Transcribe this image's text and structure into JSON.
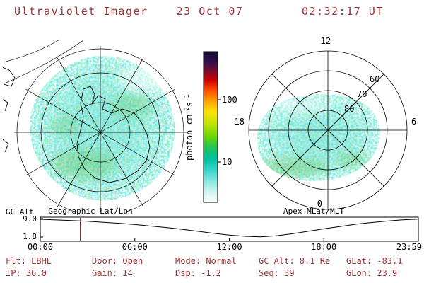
{
  "header": {
    "title": "Ultraviolet Imager",
    "date": "23 Oct 07",
    "time": "02:32:17 UT"
  },
  "colors": {
    "text_accent": "#993333",
    "plot_line": "#000000",
    "marker_red": "#ff0000",
    "aurora_cyan": "#66ddcc",
    "aurora_green": "#55cc44"
  },
  "left_panel": {
    "title": "Geographic Lat/Lon"
  },
  "right_panel": {
    "title": "Apex MLat/MLT",
    "mlt": [
      "12",
      "18",
      "6",
      "0"
    ],
    "mlat": [
      "60",
      "70",
      "80"
    ]
  },
  "colorbar": {
    "label_main": "photon cm",
    "label_sup1": "-2",
    "label_mid": "s",
    "label_sup2": "-1",
    "ticks": [
      "100",
      "10"
    ],
    "scale": "log",
    "gradient": [
      [
        0,
        "#120e30"
      ],
      [
        0.07,
        "#33104e"
      ],
      [
        0.13,
        "#7a0a28"
      ],
      [
        0.19,
        "#cf0000"
      ],
      [
        0.26,
        "#ff5400"
      ],
      [
        0.33,
        "#ffa400"
      ],
      [
        0.4,
        "#ffe100"
      ],
      [
        0.48,
        "#bfe300"
      ],
      [
        0.56,
        "#6fd400"
      ],
      [
        0.64,
        "#1fc35a"
      ],
      [
        0.71,
        "#00c2a0"
      ],
      [
        0.79,
        "#3cd4cc"
      ],
      [
        0.87,
        "#96e9e4"
      ],
      [
        0.94,
        "#d6f4f1"
      ],
      [
        1,
        "#ffffff"
      ]
    ]
  },
  "strip": {
    "ylabel": "GC Alt",
    "yticks": [
      "9.0",
      "1.8"
    ],
    "xticks": [
      "00:00",
      "06:00",
      "12:00",
      "18:00",
      "23:59"
    ]
  },
  "status": {
    "flt": "Flt: LBHL",
    "ip": "IP: 36.0",
    "door": "Door: Open",
    "gain": "Gain: 14",
    "mode": "Mode: Normal",
    "dsp": "Dsp: -1.2",
    "gcalt": "GC Alt: 8.1 Re",
    "seq": "Seq: 39",
    "glat": "GLat: -83.1",
    "glon": "GLon: 23.9"
  },
  "chart_data": [
    {
      "type": "heatmap",
      "title": "Geographic Lat/Lon",
      "projection": "southern-hemisphere polar stereographic",
      "quantity": "UV auroral photon flux",
      "units": "photon cm-2 s-1",
      "scale": "log",
      "colorbar_ticks": [
        100,
        10
      ],
      "description": "Diffuse cyan-green auroral emission (~3-20 photon cm-2 s-1) filling the polar cap; Antarctica coastline and lat/lon grid overlaid"
    },
    {
      "type": "heatmap",
      "title": "Apex MLat/MLT",
      "axes": {
        "mlt_labels": [
          12,
          18,
          6,
          0
        ],
        "mlat_rings": [
          80,
          70,
          60
        ],
        "outer_ring_mlat": 50
      },
      "description": "Auroral emission oval spanning roughly 55-80 apex MLat, brightest toward dusk/night sector, ~3-20 photon cm-2 s-1"
    },
    {
      "type": "line",
      "title": "Spacecraft geocentric altitude vs UT",
      "ylabel": "GC Alt",
      "yticks": [
        9.0,
        1.8
      ],
      "ylim": [
        0,
        9.65
      ],
      "x_hours": [
        0,
        1,
        2,
        3,
        4,
        5,
        6,
        7,
        8,
        9,
        10,
        11,
        12,
        13,
        14,
        15,
        16,
        17,
        18,
        19,
        20,
        21,
        22,
        23,
        24
      ],
      "values": [
        8.8,
        8.55,
        8.3,
        8.0,
        7.6,
        7.2,
        6.7,
        6.1,
        5.5,
        4.8,
        4.0,
        3.2,
        2.5,
        2.0,
        1.8,
        2.2,
        3.0,
        4.0,
        5.0,
        5.9,
        6.8,
        7.5,
        8.1,
        8.6,
        8.85
      ],
      "xtick_labels": [
        "00:00",
        "06:00",
        "12:00",
        "18:00",
        "23:59"
      ],
      "marker_time_hours": 2.538,
      "marker_color": "#ff0000"
    }
  ]
}
